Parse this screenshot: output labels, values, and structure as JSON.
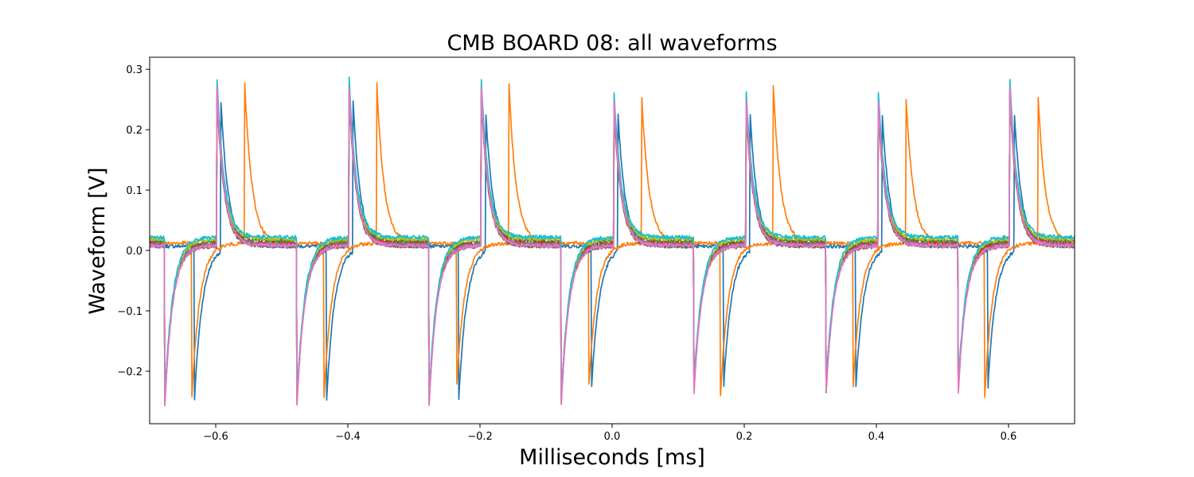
{
  "chart_data": {
    "type": "line",
    "title": "CMB BOARD 08: all waveforms",
    "xlabel": "Milliseconds [ms]",
    "ylabel": "Waveform [V]",
    "xlim": [
      -0.7,
      0.7
    ],
    "ylim": [
      -0.287,
      0.32
    ],
    "x_ticks": [
      -0.6,
      -0.4,
      -0.2,
      0.0,
      0.2,
      0.4,
      0.6
    ],
    "x_tick_labels": [
      "−0.6",
      "−0.4",
      "−0.2",
      "0.0",
      "0.2",
      "0.4",
      "0.6"
    ],
    "y_ticks": [
      -0.2,
      -0.1,
      0.0,
      0.1,
      0.2,
      0.3
    ],
    "y_tick_labels": [
      "−0.2",
      "−0.1",
      "0.0",
      "0.1",
      "0.2",
      "0.3"
    ],
    "grid": false,
    "legend": "none",
    "pulse_period_ms": 0.2,
    "series": [
      {
        "color": "#1f77b4",
        "baseline": 0.007,
        "rise_ms": -0.592,
        "peak": 0.255,
        "fall_ms": -0.632,
        "trough": -0.245
      },
      {
        "color": "#ff7f0e",
        "baseline": 0.012,
        "rise_ms": -0.556,
        "peak": 0.275,
        "fall_ms": -0.636,
        "trough": -0.243
      },
      {
        "color": "#2ca02c",
        "baseline": 0.016,
        "rise_ms": -0.598,
        "peak": 0.262,
        "fall_ms": -0.677,
        "trough": -0.255
      },
      {
        "color": "#d62728",
        "baseline": 0.012,
        "rise_ms": -0.598,
        "peak": 0.258,
        "fall_ms": -0.677,
        "trough": -0.248
      },
      {
        "color": "#9467bd",
        "baseline": 0.01,
        "rise_ms": -0.598,
        "peak": 0.265,
        "fall_ms": -0.677,
        "trough": -0.25
      },
      {
        "color": "#8c564b",
        "baseline": 0.007,
        "rise_ms": -0.598,
        "peak": 0.255,
        "fall_ms": -0.677,
        "trough": -0.245
      },
      {
        "color": "#7f7f7f",
        "baseline": 0.009,
        "rise_ms": -0.598,
        "peak": 0.26,
        "fall_ms": -0.677,
        "trough": -0.249
      },
      {
        "color": "#bcbd22",
        "baseline": 0.019,
        "rise_ms": -0.598,
        "peak": 0.27,
        "fall_ms": -0.677,
        "trough": -0.252
      },
      {
        "color": "#17becf",
        "baseline": 0.022,
        "rise_ms": -0.598,
        "peak": 0.285,
        "fall_ms": -0.677,
        "trough": -0.246
      },
      {
        "color": "#e377c2",
        "baseline": 0.008,
        "rise_ms": -0.598,
        "peak": 0.272,
        "fall_ms": -0.677,
        "trough": -0.255
      }
    ]
  }
}
